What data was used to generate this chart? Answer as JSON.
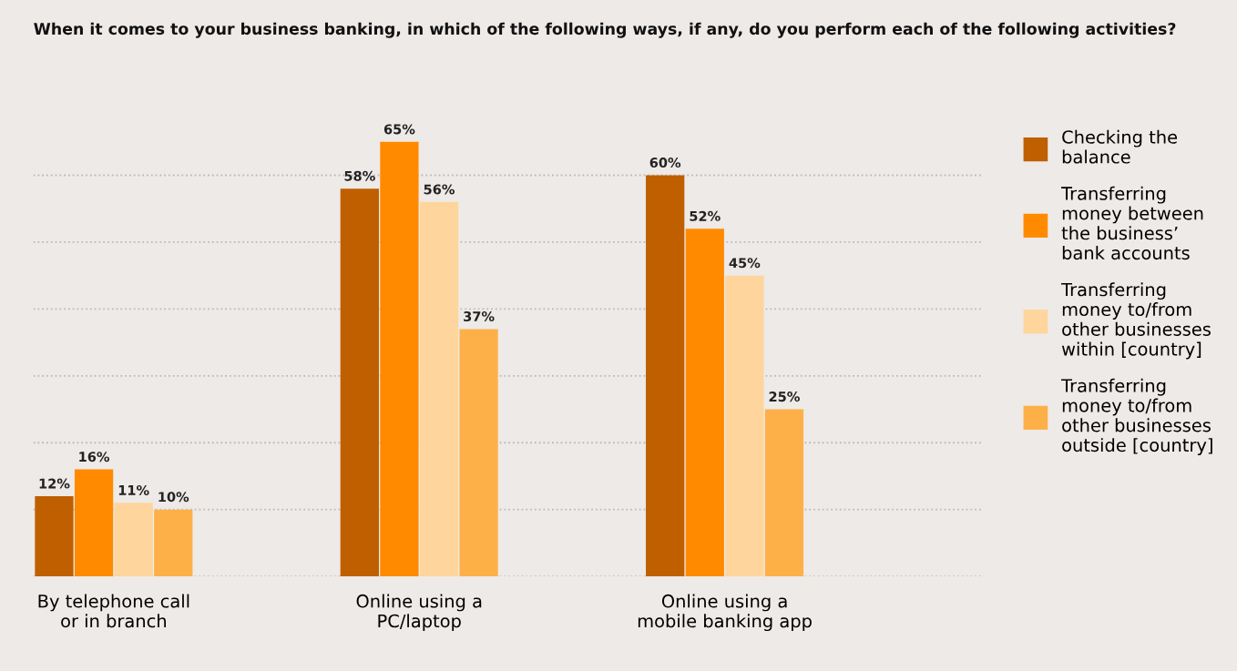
{
  "chart_data": {
    "type": "bar",
    "title": "When it comes to your business banking, in which of the following ways, if any, do you perform each of the following activities?",
    "categories": [
      "By telephone call\nor in branch",
      "Online using a\nPC/laptop",
      "Online using a\nmobile banking app"
    ],
    "series": [
      {
        "name": "Checking the\nbalance",
        "color": "#bf5f00",
        "values": [
          12,
          58,
          60
        ],
        "value_labels": [
          "12%",
          "58%",
          "60%"
        ]
      },
      {
        "name": "Transferring\nmoney between\nthe business’\nbank accounts",
        "color": "#ff8a00",
        "values": [
          16,
          65,
          52
        ],
        "value_labels": [
          "16%",
          "65%",
          "52%"
        ]
      },
      {
        "name": "Transferring\nmoney to/from\nother businesses\nwithin [country]",
        "color": "#fed59c",
        "values": [
          11,
          56,
          45
        ],
        "value_labels": [
          "11%",
          "56%",
          "45%"
        ]
      },
      {
        "name": "Transferring\nmoney to/from\nother businesses\noutside [country]",
        "color": "#feb048",
        "values": [
          10,
          37,
          25
        ],
        "value_labels": [
          "10%",
          "37%",
          "25%"
        ]
      }
    ],
    "grid": "y",
    "legend": "right",
    "tick_labels": "x",
    "line_style": "dotted"
  }
}
